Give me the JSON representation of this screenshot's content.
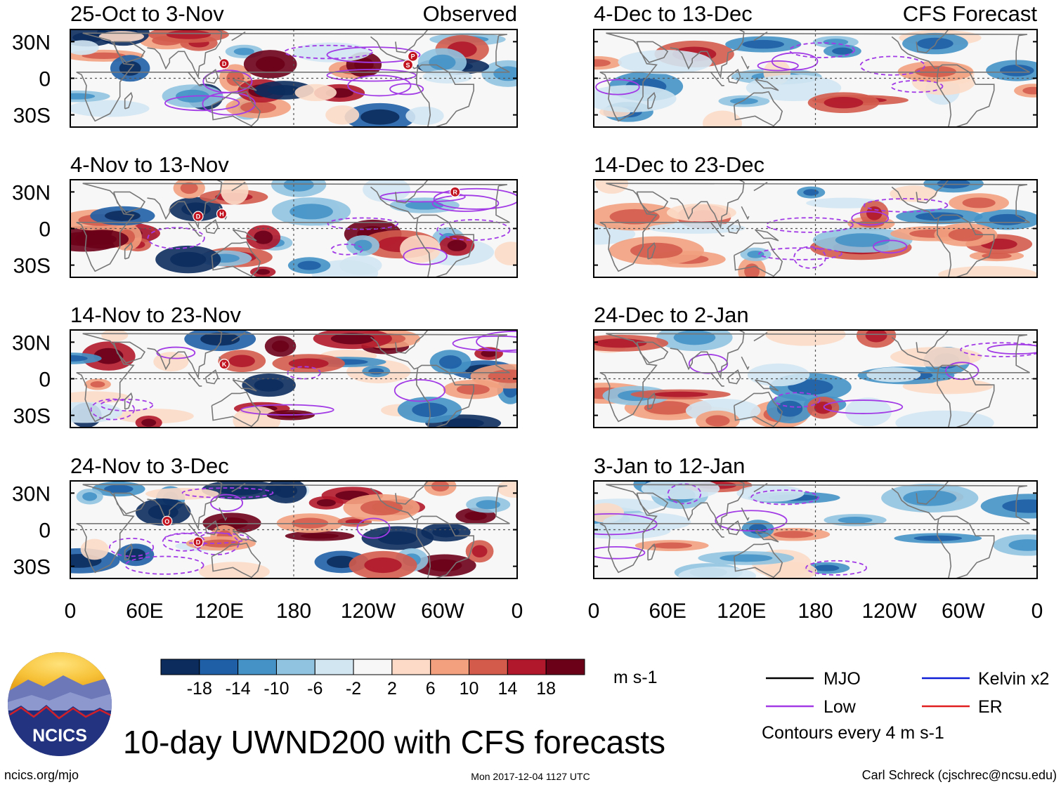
{
  "chart_data": {
    "type": "heatmap",
    "title": "10-day UWND200 with CFS forecasts",
    "variable": "UWND200",
    "units": "m s-1",
    "contour_note": "Contours every 4 m s-1",
    "columns": [
      {
        "header": "Observed",
        "panels": [
          {
            "period": "25-Oct to 3-Nov",
            "storms": [
              {
                "letter": "D",
                "lon": 124,
                "lat": 12
              },
              {
                "letter": "P",
                "lon": 276,
                "lat": 18
              },
              {
                "letter": "S",
                "lon": 272,
                "lat": 11
              }
            ]
          },
          {
            "period": "4-Nov to 13-Nov",
            "storms": [
              {
                "letter": "D",
                "lon": 103,
                "lat": 10
              },
              {
                "letter": "H",
                "lon": 122,
                "lat": 12
              },
              {
                "letter": "R",
                "lon": 310,
                "lat": 30
              }
            ]
          },
          {
            "period": "14-Nov to 23-Nov",
            "storms": [
              {
                "letter": "K",
                "lon": 124,
                "lat": 12
              }
            ]
          },
          {
            "period": "24-Nov to 3-Dec",
            "storms": [
              {
                "letter": "O",
                "lon": 78,
                "lat": 7
              },
              {
                "letter": "D",
                "lon": 103,
                "lat": -10
              }
            ]
          }
        ]
      },
      {
        "header": "CFS Forecast",
        "panels": [
          {
            "period": "4-Dec to 13-Dec",
            "storms": []
          },
          {
            "period": "14-Dec to 23-Dec",
            "storms": []
          },
          {
            "period": "24-Dec to 2-Jan",
            "storms": []
          },
          {
            "period": "3-Jan to 12-Jan",
            "storms": []
          }
        ]
      }
    ],
    "y_axis": {
      "ticks": [
        "30N",
        "0",
        "30S"
      ],
      "values": [
        30,
        0,
        -30
      ],
      "ylim": [
        -40,
        40
      ]
    },
    "x_axis": {
      "ticks": [
        "0",
        "60E",
        "120E",
        "180",
        "120W",
        "60W",
        "0"
      ],
      "values": [
        0,
        60,
        120,
        180,
        240,
        300,
        360
      ],
      "xlim": [
        0,
        360
      ]
    },
    "colorbar": {
      "labels": [
        "-18",
        "-14",
        "-10",
        "-6",
        "-2",
        "2",
        "6",
        "10",
        "14",
        "18"
      ],
      "colors": [
        "#0c2c5e",
        "#1f5fa6",
        "#4592c6",
        "#90c3e0",
        "#d2e6f2",
        "#f7f7f7",
        "#fcdac7",
        "#f2a07e",
        "#d35b4c",
        "#b1182b",
        "#6b0019"
      ]
    },
    "legend": [
      {
        "label": "MJO",
        "color": "#000000"
      },
      {
        "label": "Kelvin x2",
        "color": "#0f1fd6"
      },
      {
        "label": "Low",
        "color": "#a23be6"
      },
      {
        "label": "ER",
        "color": "#e02020"
      }
    ]
  },
  "branding": {
    "logo_text": "NCICS",
    "url": "ncics.org/mjo"
  },
  "footer": {
    "timestamp": "Mon 2017-12-04 1127 UTC",
    "credit": "Carl Schreck (cjschrec@ncsu.edu)"
  },
  "colors": {
    "land_outline": "#777777",
    "low_contour": "#a23be6",
    "storm_marker": "#c1121f"
  }
}
